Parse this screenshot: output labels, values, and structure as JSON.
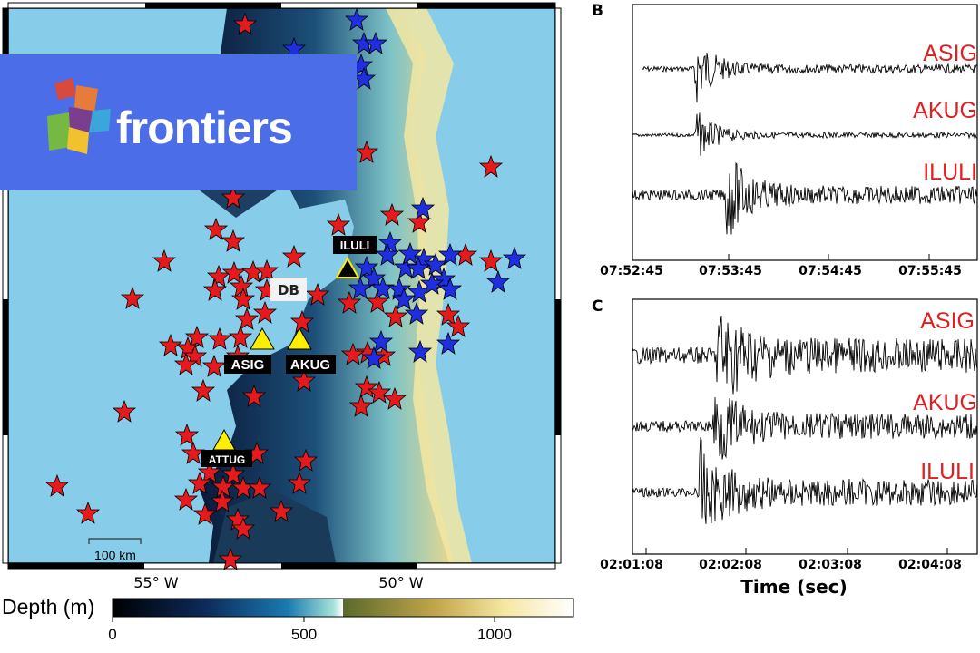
{
  "logo": {
    "text": "frontiers",
    "color": "#4b6de8"
  },
  "panels": {
    "b": "B",
    "c": "C"
  },
  "map": {
    "lon_labels": [
      "55° W",
      "50° W"
    ],
    "scale_bar": "100 km",
    "region_label": "DB",
    "stations": [
      {
        "name": "ILULI",
        "marker": "black-triangle"
      },
      {
        "name": "ASIG",
        "marker": "yellow-triangle"
      },
      {
        "name": "AKUG",
        "marker": "yellow-triangle"
      },
      {
        "name": "ATTUG",
        "marker": "yellow-triangle"
      }
    ],
    "colorbar": {
      "label": "Depth (m)",
      "ticks": [
        "0",
        "500",
        "1000"
      ]
    },
    "colors": {
      "sea": "#87cdea",
      "red_star": "#e41a1c",
      "blue_star": "#1f2fe0",
      "triangle": "#ffee00"
    }
  },
  "waveforms_b": {
    "traces": [
      "ASIG",
      "AKUG",
      "ILULI"
    ],
    "time_ticks": [
      "07:52:45",
      "07:53:45",
      "07:54:45",
      "07:55:45"
    ]
  },
  "waveforms_c": {
    "traces": [
      "ASIG",
      "AKUG",
      "ILULI"
    ],
    "time_ticks": [
      "02:01:08",
      "02:02:08",
      "02:03:08",
      "02:04:08"
    ],
    "xlabel": "Time (sec)"
  }
}
